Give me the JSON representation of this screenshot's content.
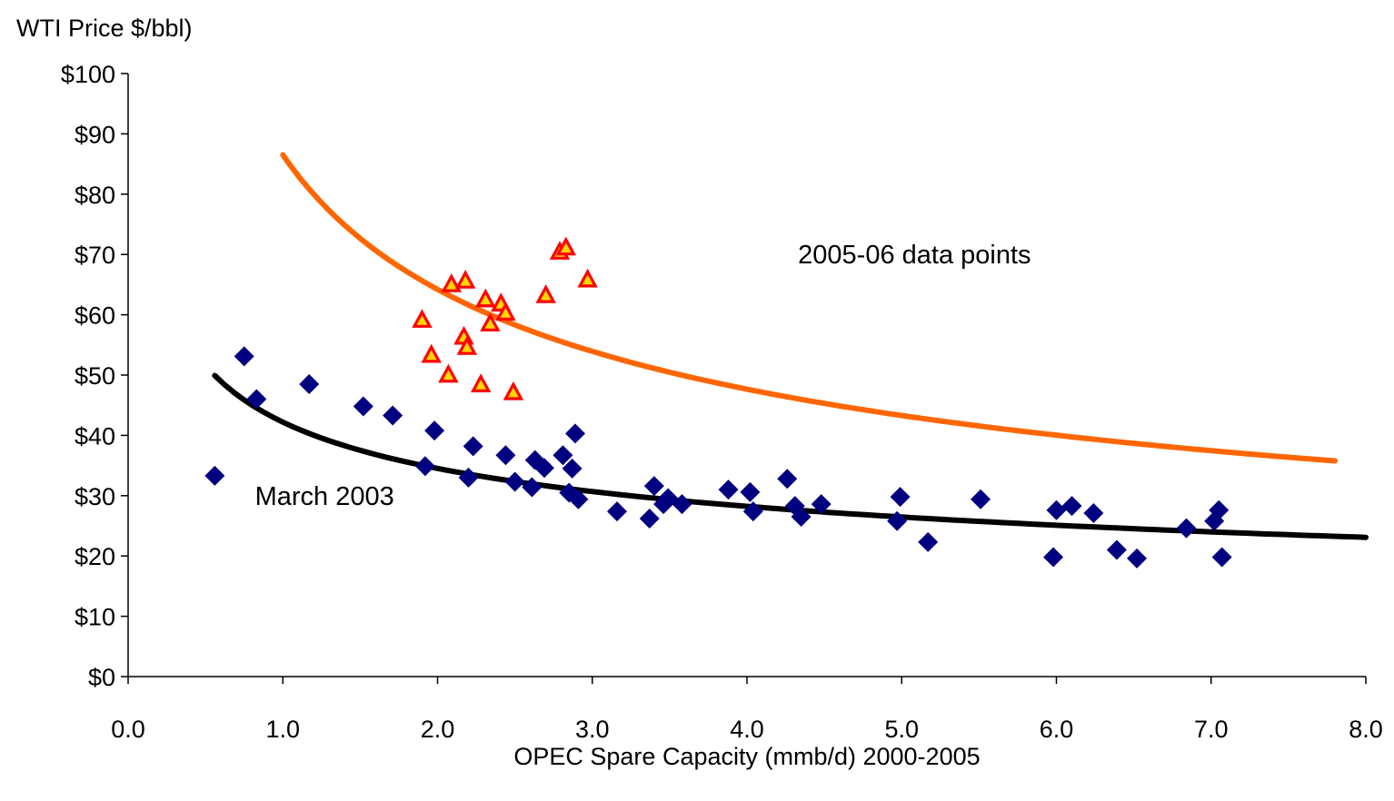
{
  "chart_data": {
    "type": "scatter",
    "title": "",
    "ylabel": "WTI Price $/bbl)",
    "xlabel": "OPEC Spare Capacity (mmb/d) 2000-2005",
    "xlim": [
      0,
      8
    ],
    "ylim": [
      0,
      100
    ],
    "x_ticks": [
      0,
      1,
      2,
      3,
      4,
      5,
      6,
      7,
      8
    ],
    "x_tick_labels": [
      "0.0",
      "1.0",
      "2.0",
      "3.0",
      "4.0",
      "5.0",
      "6.0",
      "7.0",
      "8.0"
    ],
    "y_ticks": [
      0,
      10,
      20,
      30,
      40,
      50,
      60,
      70,
      80,
      90,
      100
    ],
    "y_tick_labels": [
      "$0",
      "$10",
      "$20",
      "$30",
      "$40",
      "$50",
      "$60",
      "$70",
      "$80",
      "$90",
      "$100"
    ],
    "grid": false,
    "annotations": [
      {
        "text": "2005-06 data points",
        "x": 4.33,
        "y": 68.5
      },
      {
        "text": "March 2003",
        "x": 0.82,
        "y": 28.5
      }
    ],
    "series": [
      {
        "marker": "diamond",
        "color": "#000080",
        "points": [
          [
            0.56,
            33.3
          ],
          [
            0.75,
            53.1
          ],
          [
            0.83,
            46.0
          ],
          [
            1.17,
            48.5
          ],
          [
            1.52,
            44.8
          ],
          [
            1.71,
            43.3
          ],
          [
            1.92,
            34.9
          ],
          [
            1.98,
            40.8
          ],
          [
            2.2,
            33.0
          ],
          [
            2.23,
            38.2
          ],
          [
            2.44,
            36.7
          ],
          [
            2.5,
            32.3
          ],
          [
            2.61,
            31.4
          ],
          [
            2.63,
            35.9
          ],
          [
            2.69,
            34.6
          ],
          [
            2.81,
            36.7
          ],
          [
            2.85,
            30.5
          ],
          [
            2.87,
            34.5
          ],
          [
            2.89,
            40.3
          ],
          [
            2.91,
            29.4
          ],
          [
            3.16,
            27.4
          ],
          [
            3.37,
            26.2
          ],
          [
            3.4,
            31.6
          ],
          [
            3.46,
            28.6
          ],
          [
            3.49,
            29.6
          ],
          [
            3.58,
            28.6
          ],
          [
            3.88,
            31.0
          ],
          [
            4.02,
            30.6
          ],
          [
            4.04,
            27.4
          ],
          [
            4.26,
            32.8
          ],
          [
            4.31,
            28.3
          ],
          [
            4.35,
            26.5
          ],
          [
            4.48,
            28.6
          ],
          [
            4.97,
            25.8
          ],
          [
            4.99,
            29.8
          ],
          [
            5.17,
            22.3
          ],
          [
            5.51,
            29.4
          ],
          [
            5.98,
            19.8
          ],
          [
            6.0,
            27.6
          ],
          [
            6.1,
            28.3
          ],
          [
            6.24,
            27.1
          ],
          [
            6.39,
            21.0
          ],
          [
            6.52,
            19.6
          ],
          [
            6.84,
            24.6
          ],
          [
            7.02,
            25.8
          ],
          [
            7.05,
            27.6
          ],
          [
            7.07,
            19.8
          ]
        ]
      },
      {
        "marker": "triangle",
        "color": "#ff0000",
        "fill": "#ffd700",
        "points": [
          [
            1.9,
            59.1
          ],
          [
            1.96,
            53.3
          ],
          [
            2.07,
            50.0
          ],
          [
            2.09,
            65.0
          ],
          [
            2.17,
            56.3
          ],
          [
            2.18,
            65.6
          ],
          [
            2.19,
            54.6
          ],
          [
            2.28,
            48.4
          ],
          [
            2.31,
            62.5
          ],
          [
            2.34,
            58.5
          ],
          [
            2.41,
            61.8
          ],
          [
            2.44,
            60.3
          ],
          [
            2.49,
            47.1
          ],
          [
            2.7,
            63.2
          ],
          [
            2.79,
            70.4
          ],
          [
            2.83,
            71.1
          ],
          [
            2.97,
            65.8
          ]
        ]
      }
    ],
    "trendlines": [
      {
        "color": "#ff6600",
        "x_range": [
          1.0,
          7.8
        ],
        "a": 86.5,
        "b": -0.43
      },
      {
        "color": "#000000",
        "x_range": [
          0.56,
          8.0
        ],
        "a": 42.2,
        "b": -0.29
      }
    ]
  }
}
